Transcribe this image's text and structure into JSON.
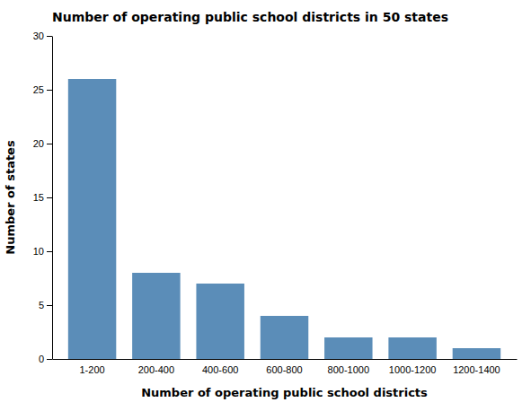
{
  "chart_data": {
    "type": "bar",
    "title": "Number of operating public school districts in 50 states",
    "xlabel": "Number of operating public school districts",
    "ylabel": "Number of states",
    "categories": [
      "1-200",
      "200-400",
      "400-600",
      "600-800",
      "800-1000",
      "1000-1200",
      "1200-1400"
    ],
    "values": [
      26,
      8,
      7,
      4,
      2,
      2,
      1
    ],
    "color": "#5B8DB8",
    "ylim": [
      0,
      30
    ],
    "yticks": [
      0,
      5,
      10,
      15,
      20,
      25,
      30
    ],
    "grid": false
  }
}
